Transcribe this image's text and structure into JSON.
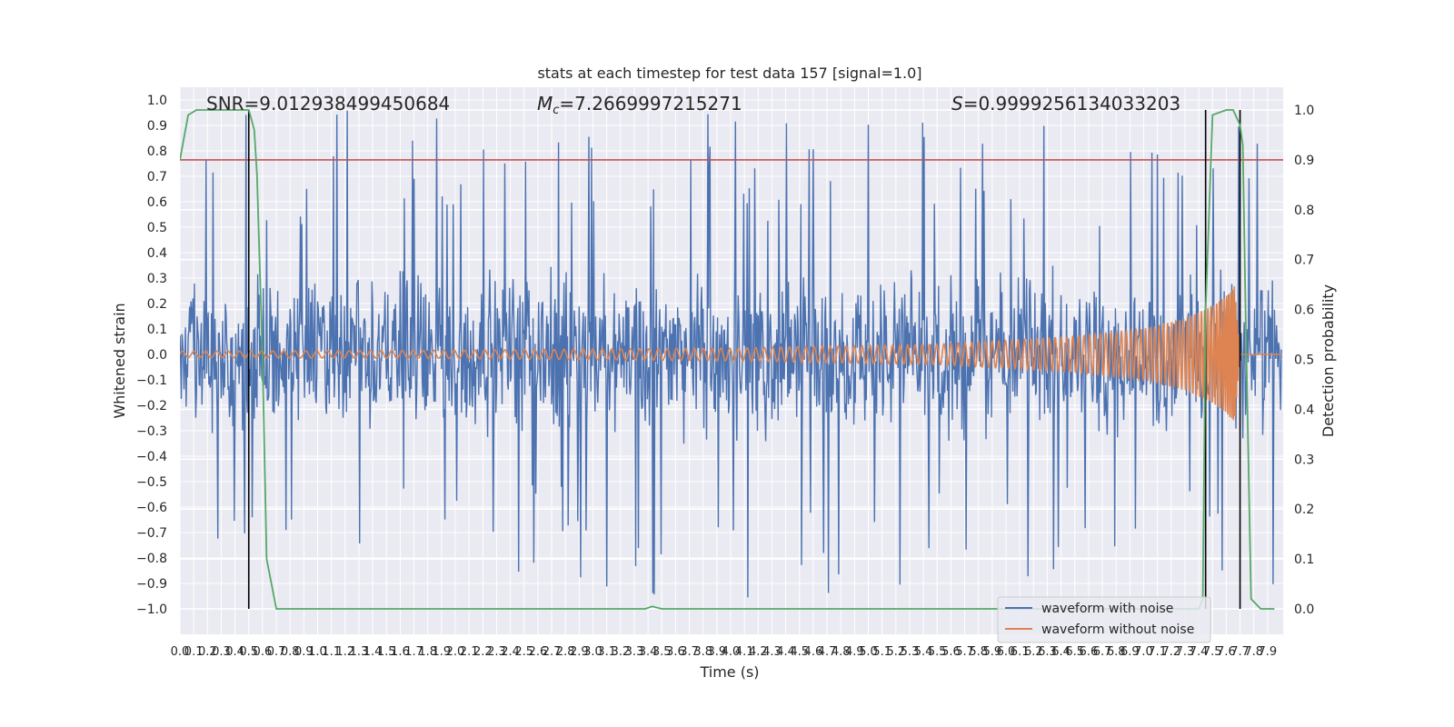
{
  "chart_data": {
    "type": "line",
    "title": "stats at each timestep for test data 157 [signal=1.0]",
    "xlabel": "Time (s)",
    "ylabel": "Whitened strain",
    "y2label": "Detection probability",
    "xlim": [
      0,
      8.0
    ],
    "ylim": [
      -1.1,
      1.05
    ],
    "y2lim": [
      -0.048,
      1.022
    ],
    "annotations": {
      "snr": "SNR=9.012938499450684",
      "mc_symbol": "M",
      "mc_sub": "c",
      "mc_value": "=7.2669997215271",
      "s_symbol": "S",
      "s_value": "=0.9999256134033203"
    },
    "x_ticks": [
      "0.0",
      "0.1",
      "0.2",
      "0.3",
      "0.4",
      "0.5",
      "0.6",
      "0.7",
      "0.8",
      "0.9",
      "1.0",
      "1.1",
      "1.2",
      "1.3",
      "1.4",
      "1.5",
      "1.6",
      "1.7",
      "1.8",
      "1.9",
      "2.0",
      "2.1",
      "2.2",
      "2.3",
      "2.4",
      "2.5",
      "2.6",
      "2.7",
      "2.8",
      "2.9",
      "3.0",
      "3.1",
      "3.2",
      "3.3",
      "3.4",
      "3.5",
      "3.6",
      "3.7",
      "3.8",
      "3.9",
      "4.0",
      "4.1",
      "4.2",
      "4.3",
      "4.4",
      "4.5",
      "4.6",
      "4.7",
      "4.8",
      "4.9",
      "5.0",
      "5.1",
      "5.2",
      "5.3",
      "5.4",
      "5.5",
      "5.6",
      "5.7",
      "5.8",
      "5.9",
      "6.0",
      "6.1",
      "6.2",
      "6.3",
      "6.4",
      "6.5",
      "6.6",
      "6.7",
      "6.8",
      "6.9",
      "7.0",
      "7.1",
      "7.2",
      "7.3",
      "7.4",
      "7.5",
      "7.6",
      "7.7",
      "7.8",
      "7.9"
    ],
    "y_ticks": [
      "1.0",
      "0.9",
      "0.8",
      "0.7",
      "0.6",
      "0.5",
      "0.4",
      "0.3",
      "0.2",
      "0.1",
      "0.0",
      "-0.1",
      "-0.2",
      "-0.3",
      "-0.4",
      "-0.5",
      "-0.6",
      "-0.7",
      "-0.8",
      "-0.9",
      "-1.0"
    ],
    "y2_ticks": [
      "1.0",
      "0.9",
      "0.8",
      "0.7",
      "0.6",
      "0.5",
      "0.4",
      "0.3",
      "0.2",
      "0.1",
      "0.0"
    ],
    "series": [
      {
        "name": "waveform with noise",
        "color": "#4c72b0",
        "description_envelope": {
          "typical_amplitude": 0.3,
          "peak_amplitude": 0.96
        }
      },
      {
        "name": "waveform without noise",
        "color": "#dd8452",
        "envelope_points": [
          [
            0.0,
            0.012
          ],
          [
            2.0,
            0.016
          ],
          [
            4.0,
            0.025
          ],
          [
            5.5,
            0.04
          ],
          [
            6.5,
            0.07
          ],
          [
            7.0,
            0.1
          ],
          [
            7.3,
            0.14
          ],
          [
            7.5,
            0.19
          ],
          [
            7.6,
            0.23
          ],
          [
            7.66,
            0.27
          ],
          [
            7.7,
            0.0
          ],
          [
            8.0,
            0.0
          ]
        ]
      },
      {
        "color": "#55a868",
        "axis": "right",
        "x": [
          0.0,
          0.06,
          0.12,
          0.2,
          0.3,
          0.4,
          0.5,
          0.54,
          0.56,
          0.6,
          0.63,
          0.7,
          1.0,
          2.0,
          3.0,
          3.3,
          3.38,
          3.43,
          3.5,
          3.7,
          4.0,
          5.0,
          6.0,
          7.0,
          7.3,
          7.4,
          7.43,
          7.45,
          7.5,
          7.6,
          7.65,
          7.7,
          7.72,
          7.74,
          7.78,
          7.85,
          7.9,
          7.95
        ],
        "y": [
          0.9,
          0.99,
          1.0,
          1.0,
          1.0,
          1.0,
          1.0,
          0.96,
          0.87,
          0.5,
          0.1,
          0.0,
          0.0,
          0.0,
          0.0,
          0.0,
          0.0,
          0.005,
          0.0,
          0.0,
          0.0,
          0.0,
          0.0,
          0.0,
          0.0,
          0.0,
          0.02,
          0.6,
          0.99,
          1.0,
          1.0,
          0.97,
          0.93,
          0.6,
          0.02,
          0.0,
          0.0,
          0.0
        ]
      }
    ],
    "threshold_line": {
      "color": "#c44e52",
      "y2": 0.9
    },
    "vlines": [
      {
        "x": 0.5,
        "y2_from": 0.0,
        "y2_to": 1.0
      },
      {
        "x": 7.45,
        "y2_from": 0.0,
        "y2_to": 1.0
      },
      {
        "x": 7.7,
        "y2_from": 0.0,
        "y2_to": 1.0
      }
    ],
    "legend": {
      "placement": "lower-right",
      "entries": [
        "waveform with noise",
        "waveform without noise"
      ]
    }
  }
}
